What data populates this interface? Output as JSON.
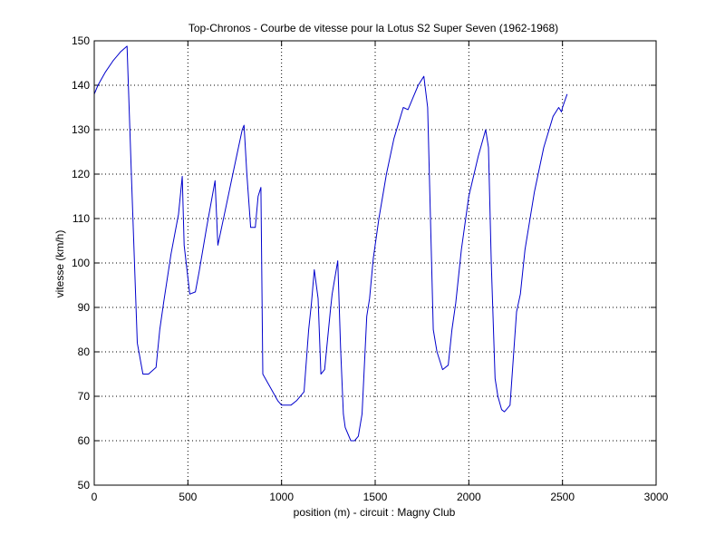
{
  "chart_data": {
    "type": "line",
    "title": "Top-Chronos - Courbe de vitesse pour la Lotus S2 Super Seven (1962-1968)",
    "xlabel": "position (m) - circuit : Magny Club",
    "ylabel": "vitesse (km/h)",
    "xlim": [
      0,
      3000
    ],
    "ylim": [
      50,
      150
    ],
    "xticks": [
      0,
      500,
      1000,
      1500,
      2000,
      2500,
      3000
    ],
    "yticks": [
      50,
      60,
      70,
      80,
      90,
      100,
      110,
      120,
      130,
      140,
      150
    ],
    "grid": true,
    "line_color": "#0000cc",
    "series": [
      {
        "x": [
          0,
          20,
          60,
          100,
          140,
          175,
          200,
          230,
          260,
          290,
          330,
          350,
          370,
          410,
          450,
          470,
          480,
          510,
          540,
          560,
          600,
          630,
          645,
          660,
          700,
          740,
          770,
          790,
          800,
          815,
          835,
          860,
          875,
          890,
          900,
          940,
          980,
          1000,
          1050,
          1080,
          1120,
          1145,
          1160,
          1175,
          1195,
          1210,
          1230,
          1260,
          1270,
          1300,
          1315,
          1330,
          1340,
          1370,
          1390,
          1410,
          1430,
          1455,
          1470,
          1490,
          1520,
          1560,
          1600,
          1650,
          1675,
          1690,
          1700,
          1730,
          1760,
          1780,
          1795,
          1810,
          1830,
          1860,
          1890,
          1910,
          1930,
          1960,
          2000,
          2050,
          2090,
          2105,
          2120,
          2140,
          2155,
          2175,
          2190,
          2200,
          2220,
          2240,
          2255,
          2275,
          2300,
          2350,
          2400,
          2450,
          2480,
          2495,
          2500,
          2525
        ],
        "y": [
          138,
          140,
          143,
          145.5,
          147.5,
          148.8,
          118,
          82,
          75,
          75,
          76.5,
          85,
          91,
          102,
          111,
          119.5,
          104,
          93,
          93.5,
          98,
          108,
          115,
          118.5,
          104,
          112,
          120,
          126,
          130,
          131,
          120,
          108,
          108,
          115,
          117,
          75,
          72,
          69,
          68,
          68,
          69,
          71,
          85,
          91,
          98.5,
          92,
          75,
          76,
          89,
          93,
          100.5,
          81,
          66,
          63,
          60,
          60,
          61,
          66,
          88,
          92,
          101,
          110,
          120,
          128,
          135,
          134.5,
          136,
          137,
          140,
          142,
          135,
          110,
          85,
          80,
          76,
          77,
          85,
          91,
          103,
          115,
          124,
          130,
          126,
          100,
          74,
          70,
          67,
          66.5,
          67,
          68,
          80,
          89,
          93,
          103,
          116,
          126,
          133,
          135,
          134,
          135,
          138
        ]
      }
    ]
  }
}
